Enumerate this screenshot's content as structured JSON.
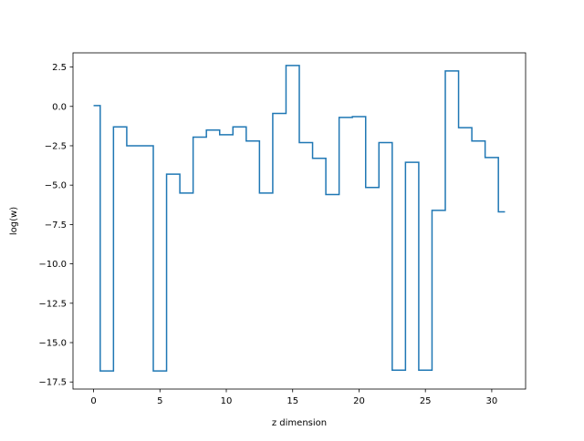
{
  "chart_data": {
    "type": "line",
    "drawstyle": "steps-mid",
    "title": "",
    "xlabel": "z dimension",
    "ylabel": "log(w)",
    "xlim": [
      -1.55,
      32.55
    ],
    "ylim": [
      -17.95,
      3.4
    ],
    "x_ticks": [
      0,
      5,
      10,
      15,
      20,
      25,
      30
    ],
    "x_tick_labels": [
      "0",
      "5",
      "10",
      "15",
      "20",
      "25",
      "30"
    ],
    "y_ticks": [
      2.5,
      0.0,
      -2.5,
      -5.0,
      -7.5,
      -10.0,
      -12.5,
      -15.0,
      -17.5
    ],
    "y_tick_labels": [
      "2.5",
      "0.0",
      "−2.5",
      "−5.0",
      "−7.5",
      "−10.0",
      "−12.5",
      "−15.0",
      "−17.5"
    ],
    "grid": false,
    "legend": "none",
    "series": [
      {
        "color": "#1f77b4",
        "x": [
          0,
          1,
          2,
          3,
          4,
          5,
          6,
          7,
          8,
          9,
          10,
          11,
          12,
          13,
          14,
          15,
          16,
          17,
          18,
          19,
          20,
          21,
          22,
          23,
          24,
          25,
          26,
          27,
          28,
          29,
          30,
          31
        ],
        "values": [
          0.05,
          -16.8,
          -1.3,
          -2.5,
          -2.5,
          -16.8,
          -4.3,
          -5.5,
          -1.95,
          -1.5,
          -1.8,
          -1.3,
          -2.2,
          -5.5,
          -0.45,
          2.6,
          -2.3,
          -3.3,
          -5.6,
          -0.7,
          -0.65,
          -5.15,
          -2.3,
          -16.75,
          -3.55,
          -16.75,
          -6.6,
          2.25,
          -1.35,
          -2.2,
          -3.25,
          -6.7
        ]
      }
    ]
  }
}
